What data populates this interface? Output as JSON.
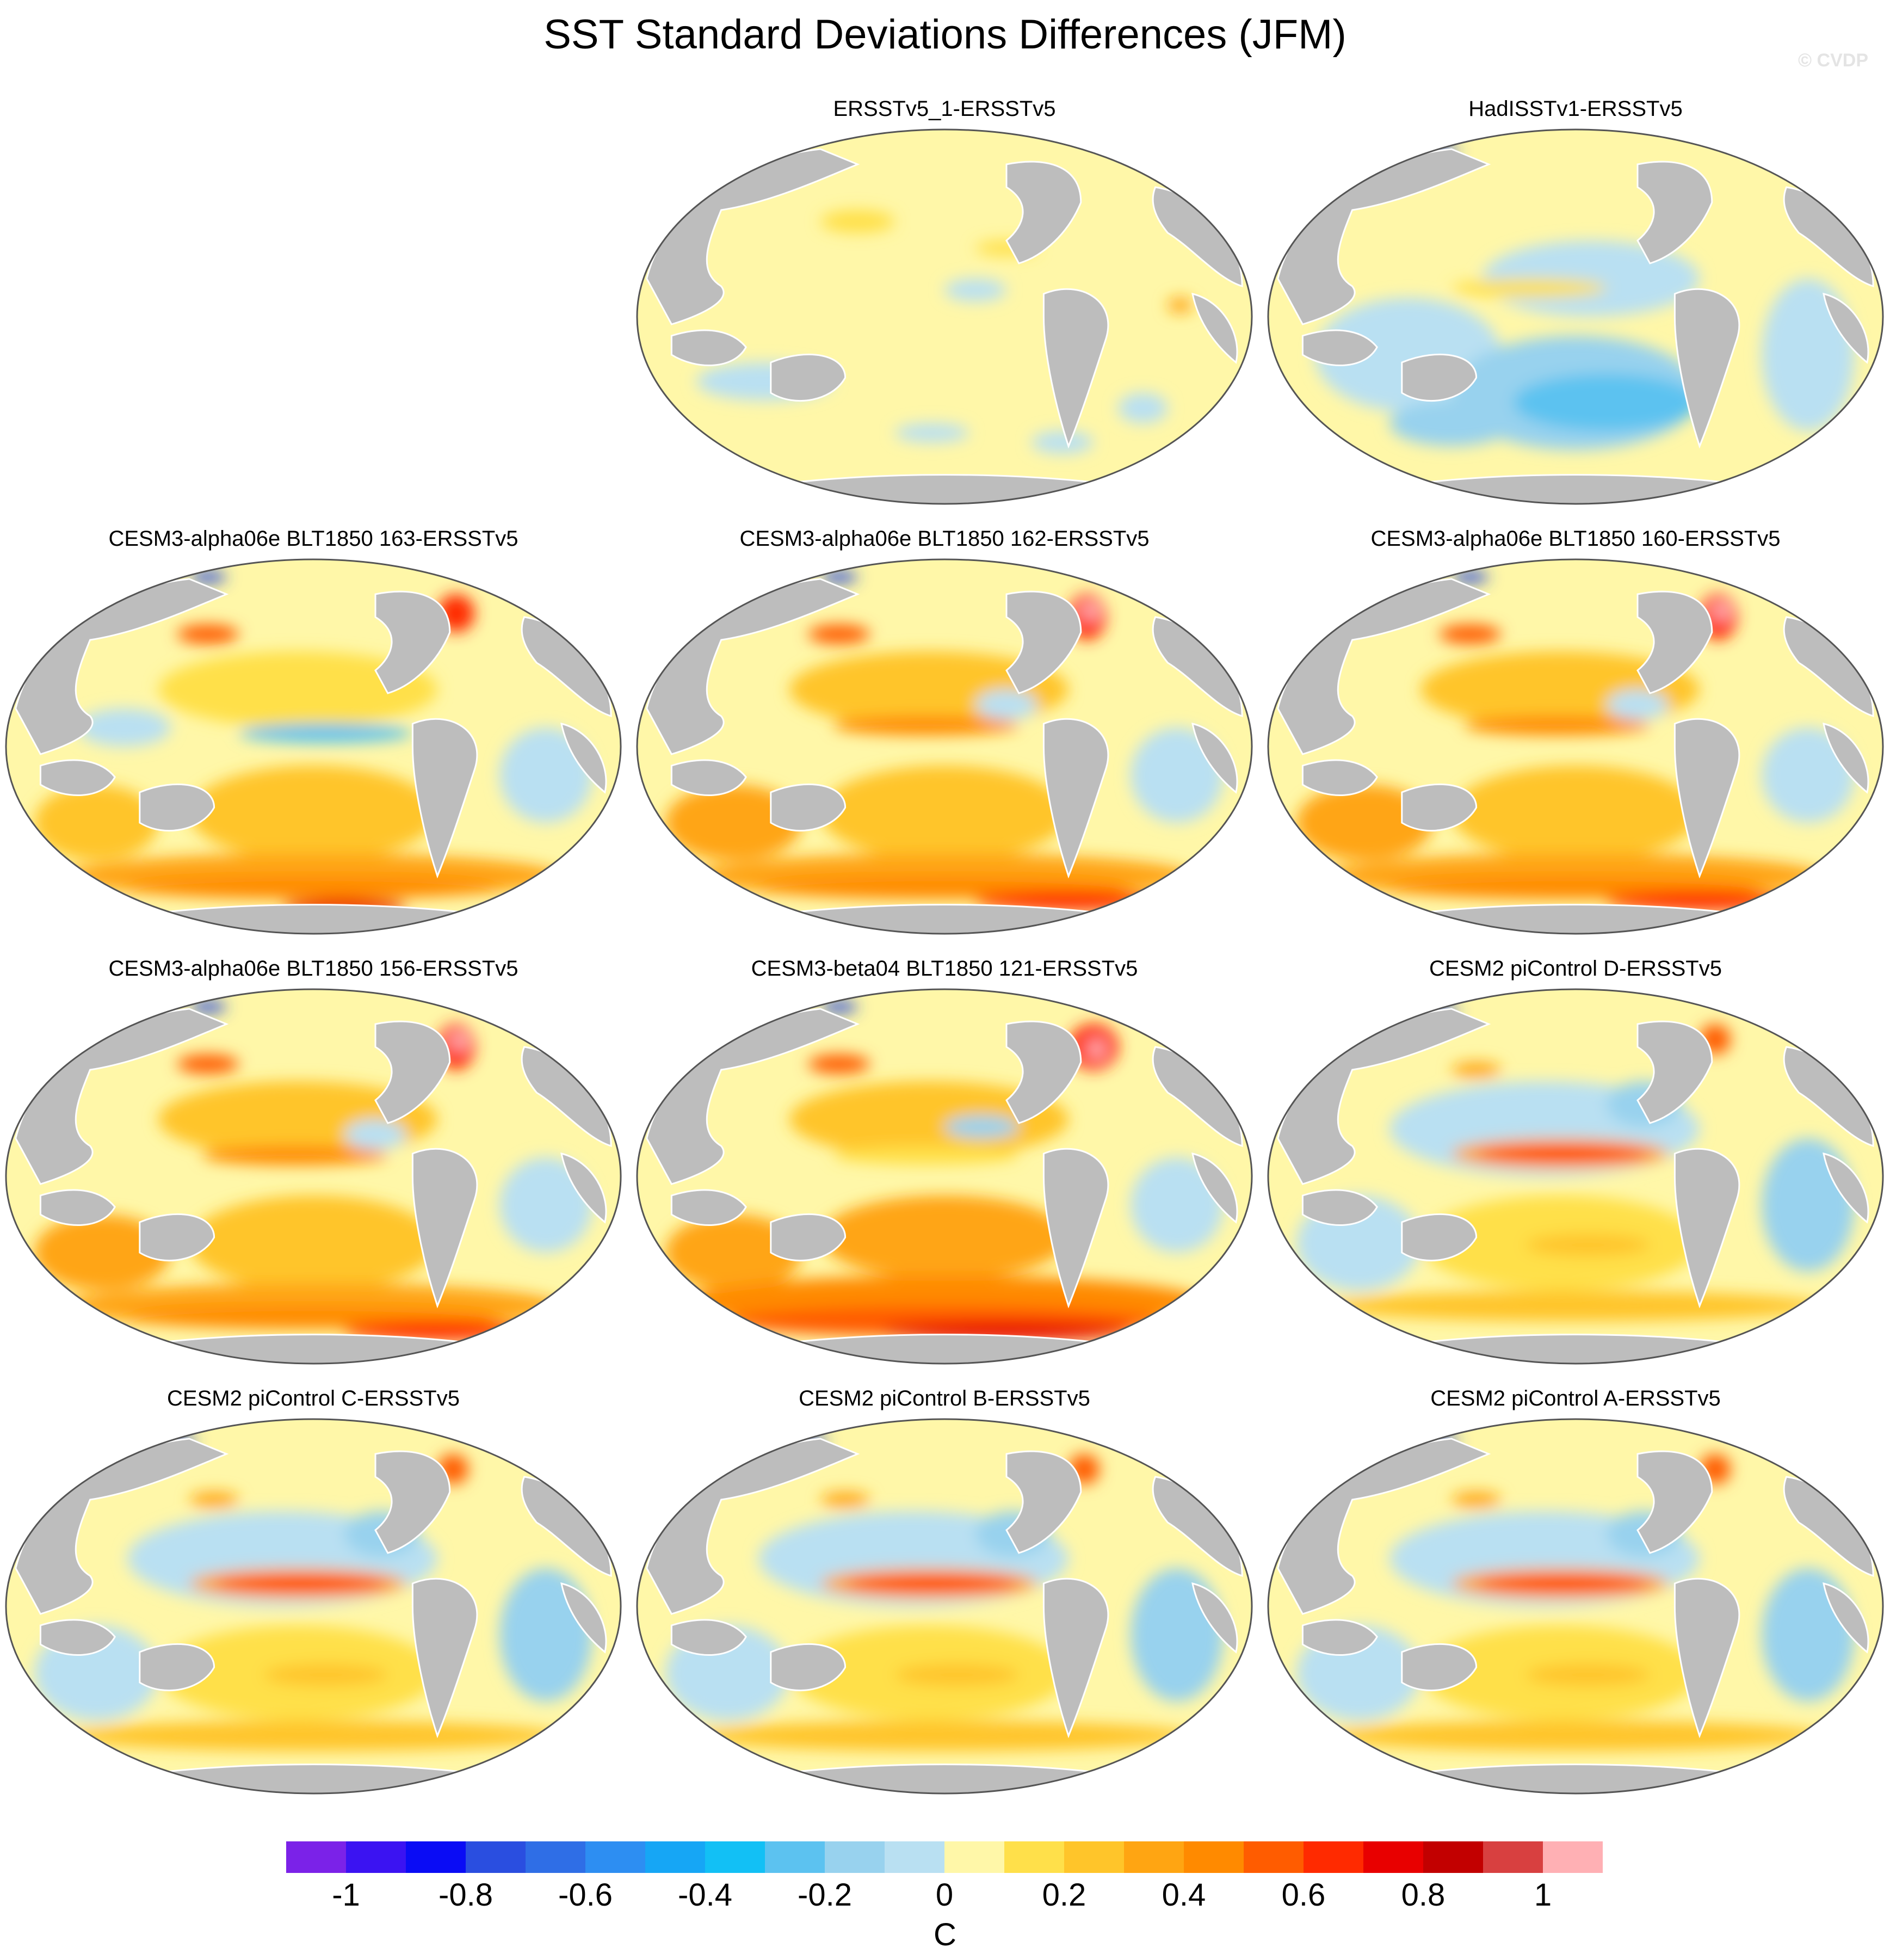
{
  "title": "SST Standard Deviations Differences (JFM)",
  "watermark": "© CVDP",
  "colors": {
    "ocean_pale_yellow": "#fff7a8",
    "land": "#bdbdbd",
    "outline": "#555555"
  },
  "panels": [
    {
      "title": "ERSSTv5_1-ERSSTv5",
      "pattern": "neutral"
    },
    {
      "title": "HadISSTv1-ERSSTv5",
      "pattern": "cool"
    },
    {
      "title": "CESM3-alpha06e BLT1850 163-ERSSTv5",
      "pattern": "warm-south-cool-equator"
    },
    {
      "title": "CESM3-alpha06e BLT1850 162-ERSSTv5",
      "pattern": "warm"
    },
    {
      "title": "CESM3-alpha06e BLT1850 160-ERSSTv5",
      "pattern": "warm"
    },
    {
      "title": "CESM3-alpha06e BLT1850 156-ERSSTv5",
      "pattern": "warm"
    },
    {
      "title": "CESM3-beta04 BLT1850 121-ERSSTv5",
      "pattern": "very-warm-south"
    },
    {
      "title": "CESM2 piControl D-ERSSTv5",
      "pattern": "equatorial-warm"
    },
    {
      "title": "CESM2 piControl C-ERSSTv5",
      "pattern": "equatorial-warm"
    },
    {
      "title": "CESM2 piControl B-ERSSTv5",
      "pattern": "equatorial-warm"
    },
    {
      "title": "CESM2 piControl A-ERSSTv5",
      "pattern": "equatorial-warm"
    }
  ],
  "colorbar": {
    "colors": [
      "#7b22e8",
      "#3b13f2",
      "#0a0cf5",
      "#2a4ee0",
      "#2f6ee6",
      "#2d8ef2",
      "#16a6f5",
      "#12c0f5",
      "#5cc2f0",
      "#98d2ee",
      "#b9e0f2",
      "#fff7a8",
      "#ffe04a",
      "#ffc52a",
      "#ffa512",
      "#ff8a00",
      "#ff5c00",
      "#ff2a00",
      "#e80000",
      "#c20000",
      "#d84040",
      "#ffb0b4"
    ],
    "labels": [
      "-1",
      "-0.8",
      "-0.6",
      "-0.4",
      "-0.2",
      "0",
      "0.2",
      "0.4",
      "0.6",
      "0.8",
      "1"
    ],
    "unit": "C"
  }
}
